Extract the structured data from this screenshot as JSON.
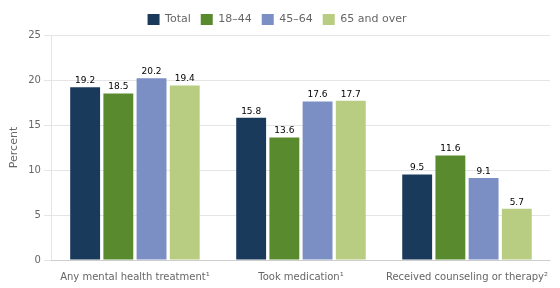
{
  "chart_data": {
    "type": "bar",
    "categories": [
      "Any mental health treatment¹",
      "Took medication¹",
      "Received counseling or therapy²"
    ],
    "series": [
      {
        "name": "Total",
        "color": "#1a3a5c",
        "values": [
          19.2,
          15.8,
          9.5
        ]
      },
      {
        "name": "18–44",
        "color": "#5a8a2e",
        "values": [
          18.5,
          13.6,
          11.6
        ]
      },
      {
        "name": "45–64",
        "color": "#7b8fc4",
        "values": [
          20.2,
          17.6,
          9.1
        ]
      },
      {
        "name": "65 and over",
        "color": "#b8cc82",
        "values": [
          19.4,
          17.7,
          5.7
        ]
      }
    ],
    "ylabel": "Percent",
    "ylim": [
      0,
      25
    ],
    "yticks": [
      0,
      5,
      10,
      15,
      20,
      25
    ],
    "grid": true,
    "legend": "top",
    "data_labels": true
  }
}
